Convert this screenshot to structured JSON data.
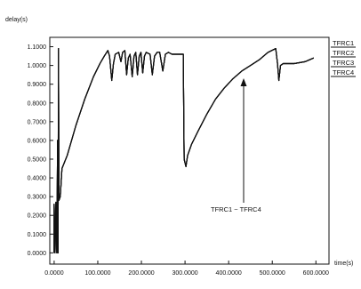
{
  "chart_data": {
    "type": "line",
    "title": "",
    "xlabel": "time(s)",
    "ylabel": "delay(s)",
    "xlim": [
      -10,
      630
    ],
    "ylim": [
      -0.06,
      1.15
    ],
    "grid": false,
    "legend_position": "right",
    "x_ticks": [
      "0.0000",
      "100.0000",
      "200.0000",
      "300.0000",
      "400.0000",
      "500.0000",
      "600.0000"
    ],
    "y_ticks": [
      "0.0000",
      "0.1000",
      "0.2000",
      "0.3000",
      "0.4000",
      "0.5000",
      "0.6000",
      "0.7000",
      "0.8000",
      "0.9000",
      "1.0000",
      "1.1000"
    ],
    "annotation": "TFRC1 ~ TFRC4",
    "series": [
      {
        "name": "TFRC1",
        "color": "#111111"
      },
      {
        "name": "TFRC2",
        "color": "#111111"
      },
      {
        "name": "TFRC3",
        "color": "#111111"
      },
      {
        "name": "TFRC4",
        "color": "#111111"
      }
    ],
    "points": [
      [
        0,
        0.0
      ],
      [
        0,
        0.26
      ],
      [
        2,
        0.0
      ],
      [
        4,
        0.27
      ],
      [
        6,
        0.0
      ],
      [
        8,
        0.6
      ],
      [
        9,
        0.0
      ],
      [
        10,
        1.09
      ],
      [
        11,
        0.28
      ],
      [
        14,
        0.3
      ],
      [
        18,
        0.45
      ],
      [
        30,
        0.52
      ],
      [
        50,
        0.68
      ],
      [
        70,
        0.82
      ],
      [
        90,
        0.94
      ],
      [
        105,
        1.01
      ],
      [
        115,
        1.05
      ],
      [
        123,
        1.08
      ],
      [
        127,
        1.05
      ],
      [
        132,
        0.92
      ],
      [
        136,
        1.01
      ],
      [
        140,
        1.06
      ],
      [
        148,
        1.07
      ],
      [
        153,
        1.02
      ],
      [
        157,
        1.07
      ],
      [
        162,
        1.08
      ],
      [
        166,
        0.95
      ],
      [
        170,
        1.04
      ],
      [
        174,
        1.06
      ],
      [
        179,
        0.94
      ],
      [
        183,
        1.05
      ],
      [
        187,
        1.07
      ],
      [
        191,
        0.95
      ],
      [
        195,
        1.05
      ],
      [
        199,
        1.07
      ],
      [
        203,
        0.96
      ],
      [
        207,
        1.05
      ],
      [
        211,
        1.07
      ],
      [
        220,
        1.06
      ],
      [
        225,
        0.95
      ],
      [
        230,
        1.05
      ],
      [
        236,
        1.07
      ],
      [
        242,
        1.07
      ],
      [
        249,
        0.97
      ],
      [
        255,
        1.06
      ],
      [
        262,
        1.07
      ],
      [
        270,
        1.06
      ],
      [
        280,
        1.06
      ],
      [
        288,
        1.06
      ],
      [
        296,
        1.06
      ],
      [
        298,
        0.5
      ],
      [
        302,
        0.46
      ],
      [
        306,
        0.52
      ],
      [
        315,
        0.58
      ],
      [
        330,
        0.65
      ],
      [
        350,
        0.74
      ],
      [
        370,
        0.82
      ],
      [
        390,
        0.88
      ],
      [
        410,
        0.93
      ],
      [
        430,
        0.97
      ],
      [
        450,
        1.0
      ],
      [
        470,
        1.03
      ],
      [
        490,
        1.07
      ],
      [
        508,
        1.09
      ],
      [
        512,
        1.01
      ],
      [
        515,
        0.92
      ],
      [
        519,
        1.0
      ],
      [
        525,
        1.01
      ],
      [
        550,
        1.01
      ],
      [
        575,
        1.02
      ],
      [
        595,
        1.04
      ]
    ]
  }
}
